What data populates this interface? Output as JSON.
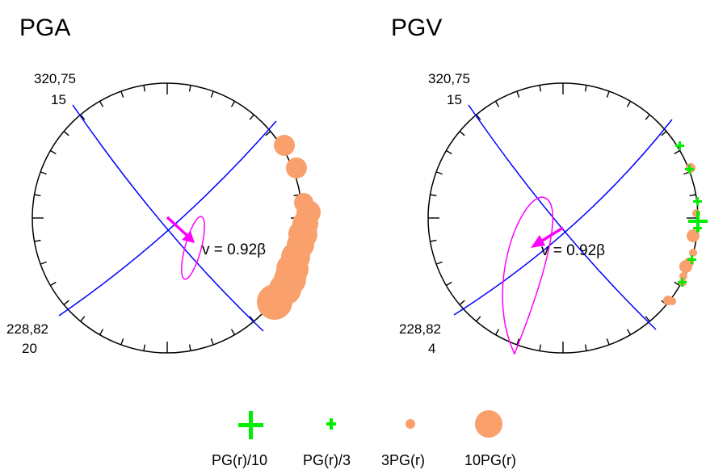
{
  "panels": [
    {
      "title": "PGA",
      "fault1_label_line1": "320,75",
      "fault1_label_line2": "15",
      "fault2_label_line1": "228,82",
      "fault2_label_line2": "20",
      "velocity_label": "v = 0.92β"
    },
    {
      "title": "PGV",
      "fault1_label_line1": "320,75",
      "fault1_label_line2": "15",
      "fault2_label_line1": "228,82",
      "fault2_label_line2": "4",
      "velocity_label": "v = 0.92β"
    }
  ],
  "legend": [
    {
      "symbol": "plus-large",
      "label": "PG(r)/10"
    },
    {
      "symbol": "plus-small",
      "label": "PG(r)/3"
    },
    {
      "symbol": "circle-small",
      "label": "3PG(r)"
    },
    {
      "symbol": "circle-large",
      "label": "10PG(r)"
    }
  ],
  "colors": {
    "great_circle": "#0000ff",
    "arrow": "#ff00ff",
    "circle_marker": "#f9a06c",
    "plus_marker": "#00ee00"
  }
}
